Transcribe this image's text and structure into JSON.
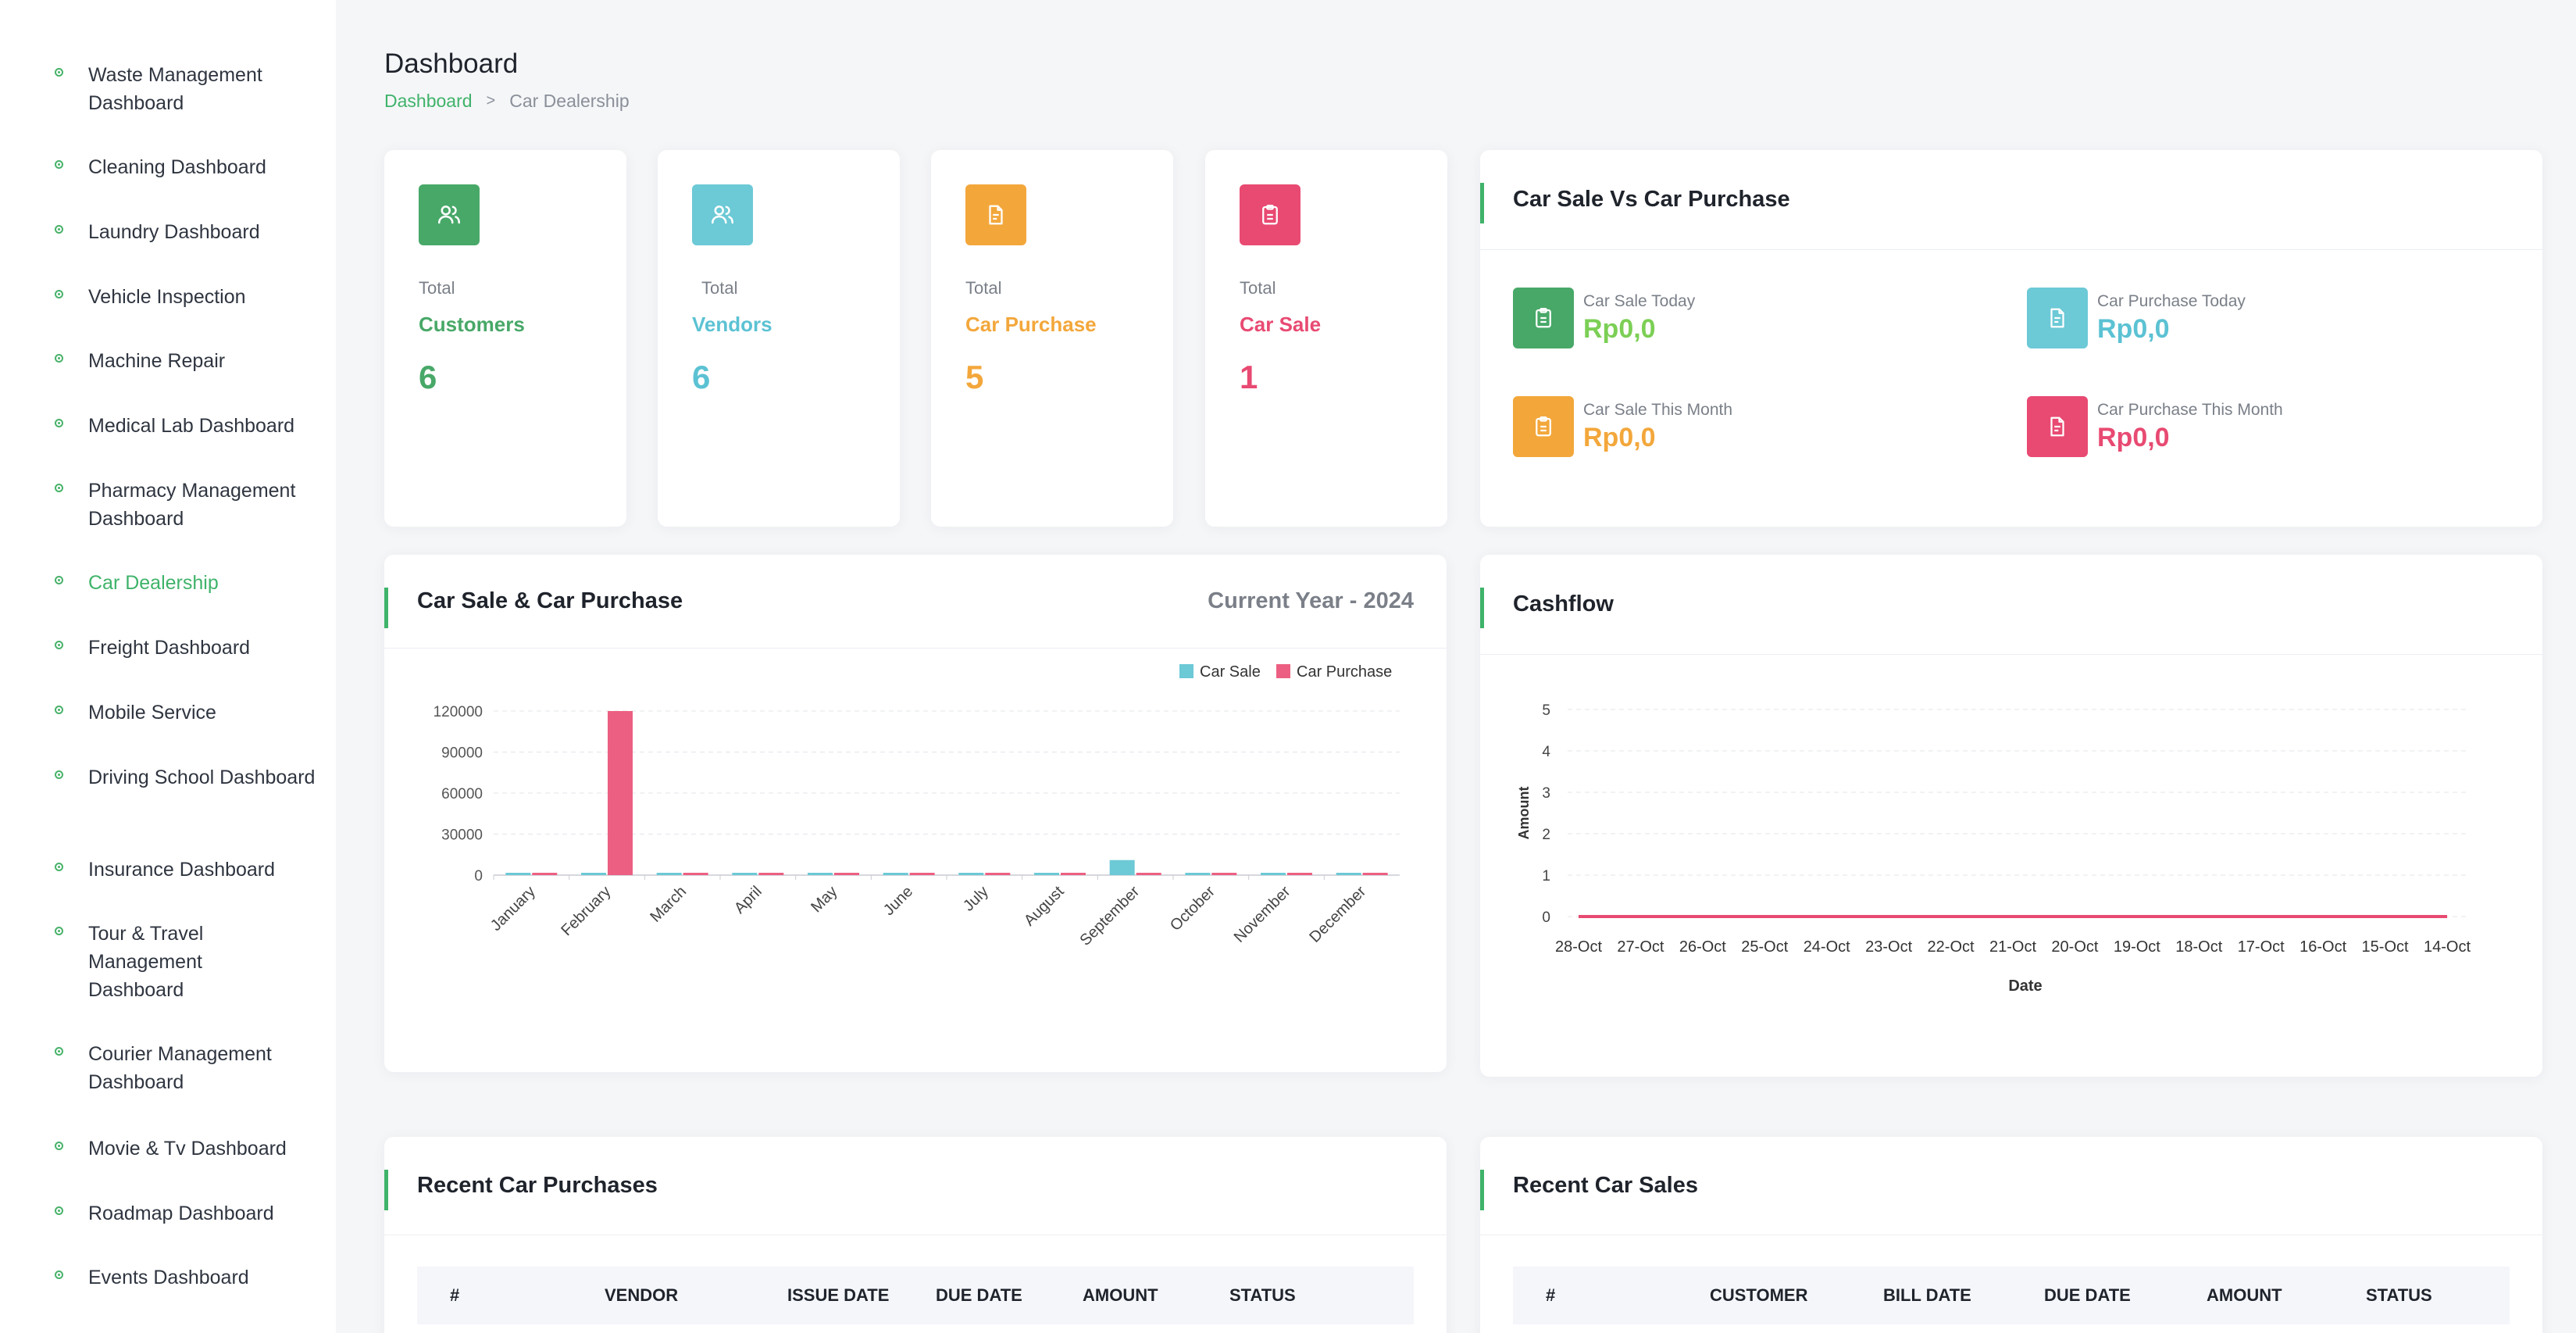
{
  "sidebar": {
    "items": [
      {
        "label": "Waste Management Dashboard",
        "active": false
      },
      {
        "label": "Cleaning Dashboard",
        "active": false
      },
      {
        "label": "Laundry Dashboard",
        "active": false
      },
      {
        "label": "Vehicle Inspection",
        "active": false
      },
      {
        "label": "Machine Repair",
        "active": false
      },
      {
        "label": "Medical Lab Dashboard",
        "active": false
      },
      {
        "label": "Pharmacy Management Dashboard",
        "active": false
      },
      {
        "label": "Car Dealership",
        "active": true
      },
      {
        "label": "Freight Dashboard",
        "active": false
      },
      {
        "label": "Mobile Service",
        "active": false
      },
      {
        "label": "Driving School Dashboard",
        "active": false
      },
      {
        "label": "Insurance Dashboard",
        "active": false
      },
      {
        "label": "Tour & Travel Management Dashboard",
        "active": false
      },
      {
        "label": "Courier Management Dashboard",
        "active": false
      },
      {
        "label": "Movie & Tv Dashboard",
        "active": false
      },
      {
        "label": "Roadmap Dashboard",
        "active": false
      },
      {
        "label": "Events Dashboard",
        "active": false
      }
    ]
  },
  "header": {
    "title": "Dashboard",
    "breadcrumb": {
      "home": "Dashboard",
      "separator": ">",
      "current": "Car Dealership"
    }
  },
  "stats": [
    {
      "label1": "Total",
      "label2": "Customers",
      "value": "6",
      "color": "#48a868",
      "icon": "users-icon"
    },
    {
      "label1": "Total",
      "label2": "Vendors",
      "value": "6",
      "color": "#5bc2d3",
      "icon": "users-icon"
    },
    {
      "label1": "Total",
      "label2": "Car Purchase",
      "value": "5",
      "color": "#f3a73b",
      "icon": "document-icon"
    },
    {
      "label1": "Total",
      "label2": "Car Sale",
      "value": "1",
      "color": "#e84a72",
      "icon": "clipboard-icon"
    }
  ],
  "sale_vs_purchase": {
    "title": "Car Sale Vs Car Purchase",
    "items": [
      {
        "label": "Car Sale Today",
        "value": "Rp0,0",
        "color": "#48a868",
        "value_color": "#7ccf55",
        "icon": "clipboard-icon"
      },
      {
        "label": "Car Purchase Today",
        "value": "Rp0,0",
        "color": "#5bc2d3",
        "value_color": "#5bc2d3",
        "icon": "document-icon"
      },
      {
        "label": "Car Sale This Month",
        "value": "Rp0,0",
        "color": "#f3a73b",
        "value_color": "#f3a73b",
        "icon": "clipboard-icon"
      },
      {
        "label": "Car Purchase This Month",
        "value": "Rp0,0",
        "color": "#e84a72",
        "value_color": "#e84a72",
        "icon": "document-icon"
      }
    ]
  },
  "bar_panel": {
    "title": "Car Sale & Car Purchase",
    "subtitle": "Current Year - 2024"
  },
  "cashflow_panel": {
    "title": "Cashflow"
  },
  "chart_data": [
    {
      "type": "bar",
      "categories": [
        "January",
        "February",
        "March",
        "April",
        "May",
        "June",
        "July",
        "August",
        "September",
        "October",
        "November",
        "December"
      ],
      "series": [
        {
          "name": "Car Sale",
          "color": "#6cc9d6",
          "values": [
            0,
            0,
            0,
            0,
            0,
            0,
            0,
            0,
            11000,
            0,
            0,
            0
          ]
        },
        {
          "name": "Car Purchase",
          "color": "#ec5f82",
          "values": [
            0,
            120000,
            0,
            0,
            0,
            0,
            0,
            0,
            0,
            0,
            0,
            0
          ]
        }
      ],
      "yticks": [
        "0",
        "30000",
        "60000",
        "90000",
        "120000"
      ],
      "ylim": [
        0,
        120000
      ],
      "legend": "top-right",
      "grid": true
    },
    {
      "type": "line",
      "x": [
        "28-Oct",
        "27-Oct",
        "26-Oct",
        "25-Oct",
        "24-Oct",
        "23-Oct",
        "22-Oct",
        "21-Oct",
        "20-Oct",
        "19-Oct",
        "18-Oct",
        "17-Oct",
        "16-Oct",
        "15-Oct",
        "14-Oct"
      ],
      "series": [
        {
          "color": "#e84a72",
          "values": [
            0,
            0,
            0,
            0,
            0,
            0,
            0,
            0,
            0,
            0,
            0,
            0,
            0,
            0,
            0
          ]
        }
      ],
      "yticks": [
        "0",
        "1",
        "2",
        "3",
        "4",
        "5"
      ],
      "ylim": [
        0,
        5
      ],
      "xlabel": "Date",
      "ylabel": "Amount",
      "grid": true
    }
  ],
  "purchases_table": {
    "title": "Recent Car Purchases",
    "columns": [
      "#",
      "VENDOR",
      "ISSUE DATE",
      "DUE DATE",
      "AMOUNT",
      "STATUS"
    ]
  },
  "sales_table": {
    "title": "Recent Car Sales",
    "columns": [
      "#",
      "CUSTOMER",
      "BILL DATE",
      "DUE DATE",
      "AMOUNT",
      "STATUS"
    ]
  }
}
